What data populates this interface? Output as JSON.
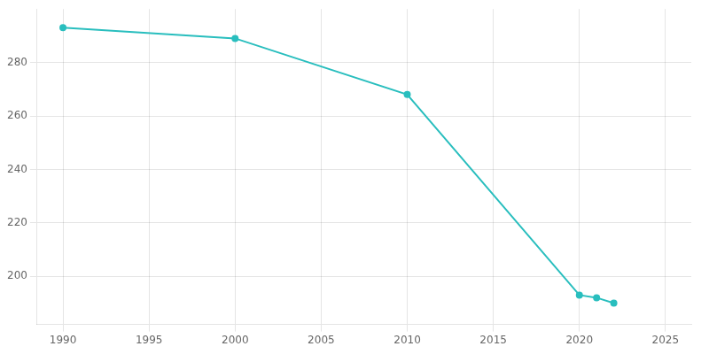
{
  "chart_data": {
    "type": "line",
    "x": [
      1990,
      2000,
      2010,
      2020,
      2021,
      2022
    ],
    "values": [
      293,
      289,
      268,
      193,
      192,
      190
    ],
    "color": "#29BEBE",
    "marker": "circle",
    "xlim": [
      1988.5,
      2026.5
    ],
    "ylim": [
      182,
      300
    ],
    "xticks": [
      1990,
      1995,
      2000,
      2005,
      2010,
      2015,
      2020,
      2025
    ],
    "yticks": [
      200,
      220,
      240,
      260,
      280
    ],
    "grid": true
  }
}
